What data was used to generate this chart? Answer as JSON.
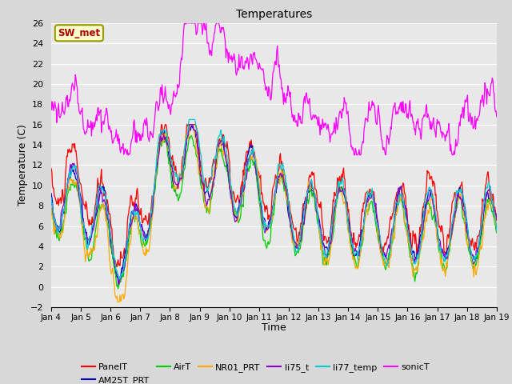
{
  "title": "Temperatures",
  "xlabel": "Time",
  "ylabel": "Temperature (C)",
  "ylim": [
    -2,
    26
  ],
  "yticks": [
    -2,
    0,
    2,
    4,
    6,
    8,
    10,
    12,
    14,
    16,
    18,
    20,
    22,
    24,
    26
  ],
  "n_days": 15,
  "xtick_labels": [
    "Jan 4",
    "Jan 5",
    "Jan 6",
    "Jan 7",
    "Jan 8",
    "Jan 9",
    "Jan 10",
    "Jan 11",
    "Jan 12",
    "Jan 13",
    "Jan 14",
    "Jan 15",
    "Jan 16",
    "Jan 17",
    "Jan 18",
    "Jan 19"
  ],
  "series_colors": {
    "PanelT": "#ff0000",
    "AM25T_PRT": "#0000cc",
    "AirT": "#00cc00",
    "NR01_PRT": "#ffaa00",
    "li75_t": "#8800cc",
    "li77_temp": "#00cccc",
    "sonicT": "#ff00ff"
  },
  "background_color": "#d8d8d8",
  "plot_bg_color": "#e8e8e8",
  "grid_color": "#ffffff",
  "annotation_text": "SW_met",
  "annotation_color": "#aa0000",
  "annotation_bg": "#ffffcc",
  "annotation_border": "#999900",
  "figwidth": 6.4,
  "figheight": 4.8,
  "dpi": 100
}
